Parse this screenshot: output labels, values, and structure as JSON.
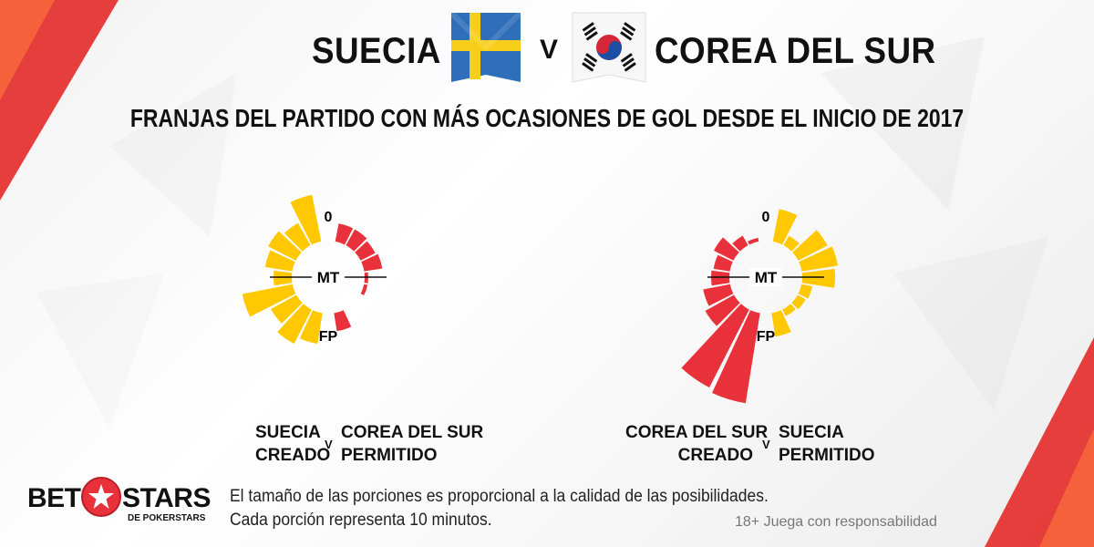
{
  "header": {
    "team_left": "SUECIA",
    "vs": "V",
    "team_right": "COREA DEL SUR",
    "subtitle": "FRANJAS DEL PARTIDO CON MÁS OCASIONES DE GOL DESDE EL INICIO DE 2017"
  },
  "colors": {
    "yellow": "#FFC800",
    "red": "#E8313A",
    "dark": "#111111"
  },
  "chart_data": [
    {
      "type": "radial-bar",
      "center_labels": {
        "top": "0",
        "middle": "MT",
        "bottom": "FP"
      },
      "slice_minutes": 10,
      "series": [
        {
          "name": "SUECIA CREADO",
          "color": "#FFC800",
          "side": "left",
          "values": [
            52,
            28,
            34,
            30,
            20,
            56,
            32,
            42,
            34
          ]
        },
        {
          "name": "COREA DEL SUR PERMITIDO",
          "color": "#E8313A",
          "side": "right",
          "values": [
            20,
            20,
            18,
            20,
            4,
            4,
            0,
            0,
            20
          ]
        }
      ],
      "caption": {
        "left_line1": "SUECIA",
        "left_line2": "CREADO",
        "vs": "V",
        "right_line1": "COREA DEL SUR",
        "right_line2": "PERMITIDO"
      }
    },
    {
      "type": "radial-bar",
      "center_labels": {
        "top": "0",
        "middle": "MT",
        "bottom": "FP"
      },
      "slice_minutes": 10,
      "series": [
        {
          "name": "COREA DEL SUR CREADO",
          "color": "#E8313A",
          "side": "left",
          "values": [
            4,
            12,
            24,
            18,
            20,
            30,
            36,
            96,
            100
          ]
        },
        {
          "name": "SUECIA PERMITIDO",
          "color": "#FFC800",
          "side": "right",
          "values": [
            36,
            12,
            36,
            40,
            36,
            12,
            10,
            8,
            26
          ]
        }
      ],
      "caption": {
        "left_line1": "COREA DEL SUR",
        "left_line2": "CREADO",
        "vs": "V",
        "right_line1": "SUECIA",
        "right_line2": "PERMITIDO"
      }
    }
  ],
  "footer": {
    "note_line1": "El tamaño de las porciones es proporcional a la calidad de las posibilidades.",
    "note_line2": "Cada porción representa 10 minutos.",
    "responsibility": "18+ Juega con responsabilidad"
  },
  "logo": {
    "bet": "BET",
    "stars": "STARS",
    "sub": "DE POKERSTARS"
  }
}
